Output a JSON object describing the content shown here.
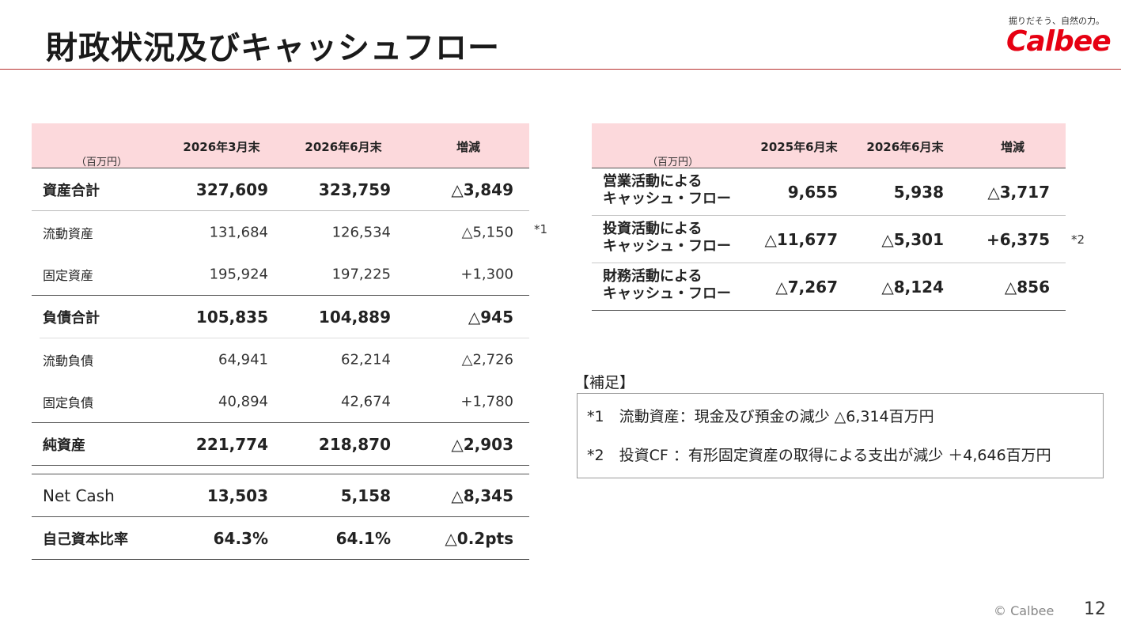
{
  "title": "財政状況及びキャッシュフロー",
  "logo": {
    "tagline": "掘りだそう、自然の力。",
    "brand": "Calbee"
  },
  "balance_sheet": {
    "unit": "（百万円）",
    "headers": [
      "2026年3月末",
      "2026年6月末",
      "増減"
    ],
    "rows": [
      {
        "label": "資産合計",
        "values": [
          "327,609",
          "323,759",
          "△3,849"
        ]
      },
      {
        "label": "流動資産",
        "values": [
          "131,684",
          "126,534",
          "△5,150"
        ]
      },
      {
        "label": "固定資産",
        "values": [
          "195,924",
          "197,225",
          "+1,300"
        ]
      },
      {
        "label": "負債合計",
        "values": [
          "105,835",
          "104,889",
          "△945"
        ]
      },
      {
        "label": "流動負債",
        "values": [
          "64,941",
          "62,214",
          "△2,726"
        ]
      },
      {
        "label": "固定負債",
        "values": [
          "40,894",
          "42,674",
          "+1,780"
        ]
      },
      {
        "label": "純資産",
        "values": [
          "221,774",
          "218,870",
          "△2,903"
        ]
      },
      {
        "label": "Net Cash",
        "values": [
          "13,503",
          "5,158",
          "△8,345"
        ]
      },
      {
        "label": "自己資本比率",
        "values": [
          "64.3%",
          "64.1%",
          "△0.2pts"
        ]
      }
    ],
    "note_mark": "*1"
  },
  "cash_flow": {
    "unit": "（百万円）",
    "headers": [
      "2025年6月末",
      "2026年6月末",
      "増減"
    ],
    "rows": [
      {
        "label1": "営業活動による",
        "label2": "キャッシュ・フロー",
        "values": [
          "9,655",
          "5,938",
          "△3,717"
        ]
      },
      {
        "label1": "投資活動による",
        "label2": "キャッシュ・フロー",
        "values": [
          "△11,677",
          "△5,301",
          "+6,375"
        ]
      },
      {
        "label1": "財務活動による",
        "label2": "キャッシュ・フロー",
        "values": [
          "△7,267",
          "△8,124",
          "△856"
        ]
      }
    ],
    "note_mark": "*2"
  },
  "supplement": {
    "heading": "【補足】",
    "lines": [
      "*1　流動資産：現金及び預金の減少 △6,314百万円",
      "*2　投資CF ：有形固定資産の取得による支出が減少 ＋4,646百万円"
    ]
  },
  "footer": {
    "copyright": "© Calbee",
    "page": "12"
  }
}
